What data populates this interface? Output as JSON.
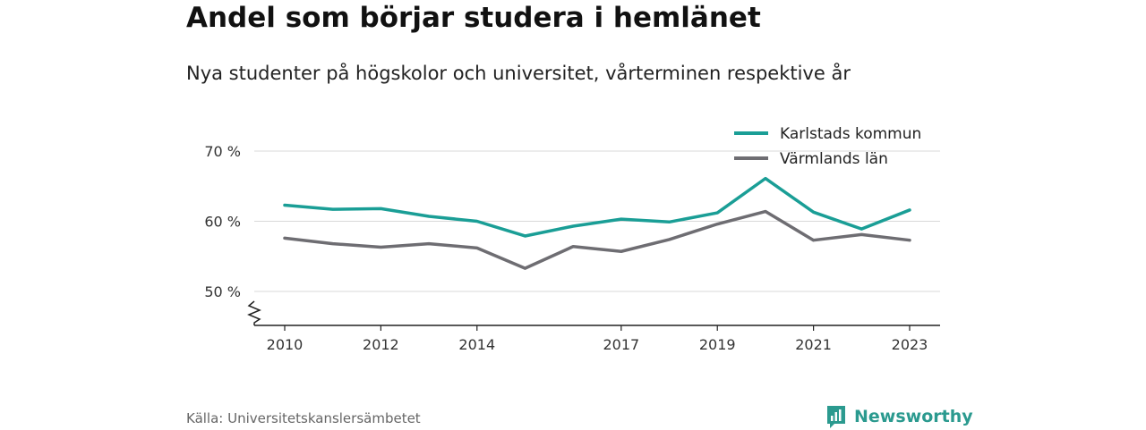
{
  "header": {
    "title": "Andel som börjar studera i hemlänet",
    "subtitle": "Nya studenter på högskolor och universitet, vårterminen respektive år"
  },
  "footer": {
    "source": "Källa: Universitetskanslersämbetet",
    "brand": "Newsworthy"
  },
  "colors": {
    "karlstad": "#1a9e96",
    "varmland": "#6e6d72",
    "grid": "#d9d9d9",
    "axis": "#222222",
    "brand": "#2b9a8f"
  },
  "chart_data": {
    "type": "line",
    "x": [
      2010,
      2011,
      2012,
      2013,
      2014,
      2015,
      2016,
      2017,
      2018,
      2019,
      2020,
      2021,
      2022,
      2023
    ],
    "x_tick_labels": [
      "2010",
      "2012",
      "2014",
      "2017",
      "2019",
      "2021",
      "2023"
    ],
    "series": [
      {
        "name": "Karlstads kommun",
        "values": [
          62.3,
          61.7,
          61.8,
          60.7,
          60.0,
          57.9,
          59.3,
          60.3,
          59.9,
          61.2,
          66.1,
          61.3,
          58.9,
          61.6
        ]
      },
      {
        "name": "Värmlands län",
        "values": [
          57.6,
          56.8,
          56.3,
          56.8,
          56.2,
          53.3,
          56.4,
          55.7,
          57.4,
          59.6,
          61.4,
          57.3,
          58.1,
          57.3
        ]
      }
    ],
    "y_ticks": [
      50,
      60,
      70
    ],
    "y_tick_labels": [
      "50 %",
      "60 %",
      "70 %"
    ],
    "ylim": [
      45,
      70
    ],
    "xlim": [
      2009.6,
      2023.6
    ],
    "axis_break": true,
    "grid": true,
    "legend_position": "top-right"
  }
}
